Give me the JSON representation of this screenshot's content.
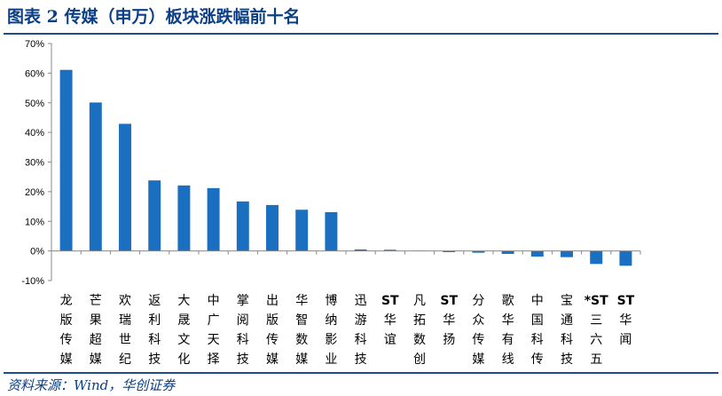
{
  "header": {
    "title": "图表 2 传媒（申万）板块涨跌幅前十名"
  },
  "footer": {
    "source": "资料来源：Wind，华创证券"
  },
  "chart_data": {
    "type": "bar",
    "title": "",
    "xlabel": "",
    "ylabel": "",
    "ylim": [
      -10,
      70
    ],
    "yticks": [
      -10,
      0,
      10,
      20,
      30,
      40,
      50,
      60,
      70
    ],
    "ytick_labels": [
      "-10%",
      "0%",
      "10%",
      "20%",
      "30%",
      "40%",
      "50%",
      "60%",
      "70%"
    ],
    "grid": false,
    "legend": "none",
    "bar_color": "#1b6fc0",
    "axis_color": "#888888",
    "categories": [
      "龙版传媒",
      "芒果超媒",
      "欢瑞世纪",
      "返利科技",
      "大晟文化",
      "中广天择",
      "掌阅科技",
      "出版传媒",
      "华智数媒",
      "博纳影业",
      "迅游科技",
      "ST华谊",
      "凡拓数创",
      "ST华扬",
      "分众传媒",
      "歌华有线",
      "中国科传",
      "宝通科技",
      "*ST三六五",
      "ST华闻"
    ],
    "category_lines": [
      [
        "龙",
        "版",
        "传",
        "媒"
      ],
      [
        "芒",
        "果",
        "超",
        "媒"
      ],
      [
        "欢",
        "瑞",
        "世",
        "纪"
      ],
      [
        "返",
        "利",
        "科",
        "技"
      ],
      [
        "大",
        "晟",
        "文",
        "化"
      ],
      [
        "中",
        "广",
        "天",
        "择"
      ],
      [
        "掌",
        "阅",
        "科",
        "技"
      ],
      [
        "出",
        "版",
        "传",
        "媒"
      ],
      [
        "华",
        "智",
        "数",
        "媒"
      ],
      [
        "博",
        "纳",
        "影",
        "业"
      ],
      [
        "迅",
        "游",
        "科",
        "技"
      ],
      [
        "ST",
        "华",
        "谊"
      ],
      [
        "凡",
        "拓",
        "数",
        "创"
      ],
      [
        "ST",
        "华",
        "扬"
      ],
      [
        "分",
        "众",
        "传",
        "媒"
      ],
      [
        "歌",
        "华",
        "有",
        "线"
      ],
      [
        "中",
        "国",
        "科",
        "传"
      ],
      [
        "宝",
        "通",
        "科",
        "技"
      ],
      [
        "*ST",
        "三",
        "六",
        "五"
      ],
      [
        "ST",
        "华",
        "闻"
      ]
    ],
    "values": [
      61.1,
      50.1,
      42.9,
      23.8,
      22.1,
      21.2,
      16.7,
      15.5,
      13.9,
      13.1,
      0.5,
      0.4,
      0.1,
      -0.4,
      -0.6,
      -1.0,
      -1.9,
      -2.1,
      -4.4,
      -5.0
    ]
  }
}
